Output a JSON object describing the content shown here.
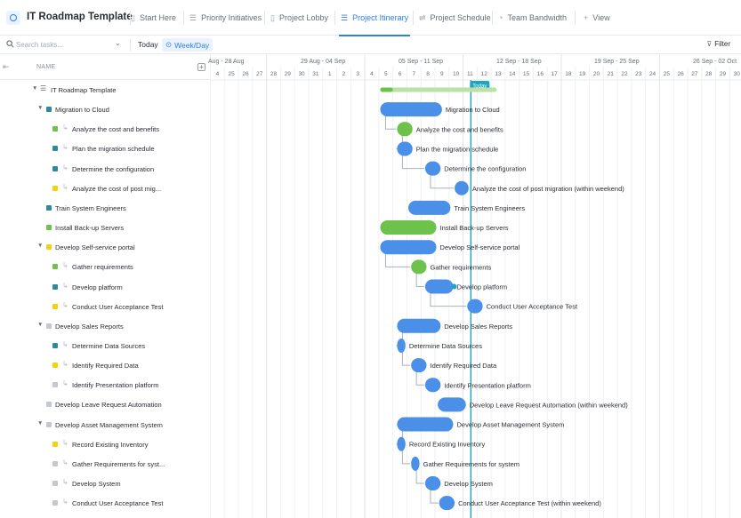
{
  "app": {
    "title": "IT Roadmap Template",
    "tabs": [
      {
        "label": "Start Here",
        "icon": "doc-icon",
        "glyph": "▯"
      },
      {
        "label": "Priority Initiatives",
        "icon": "list-icon",
        "glyph": "☰"
      },
      {
        "label": "Project Lobby",
        "icon": "board-icon",
        "glyph": "▯"
      },
      {
        "label": "Project Itinerary",
        "icon": "gantt-icon",
        "glyph": "☰",
        "active": true
      },
      {
        "label": "Project Schedule",
        "icon": "timeline-icon",
        "glyph": "⇌"
      },
      {
        "label": "Team Bandwidth",
        "icon": "workload-icon",
        "glyph": "◔"
      },
      {
        "label": "View",
        "icon": "plus-icon",
        "glyph": "+"
      }
    ]
  },
  "toolbar": {
    "search_placeholder": "Search tasks...",
    "today_label": "Today",
    "weekday_label": "Week/Day",
    "filter_label": "Filter"
  },
  "list": {
    "name_header": "NAME"
  },
  "colors": {
    "accent": "#2f7fe0",
    "bar_blue": "#4a8fe8",
    "bar_green": "#6cc24a",
    "progress_light": "#b9e2a3",
    "today_line": "#1fa3c0",
    "status_green": "#6cc24a",
    "status_teal": "#2e8b9a",
    "status_yellow": "#f5d20f",
    "status_grey": "#c4c9d1"
  },
  "timeline": {
    "weeks": [
      "Aug - 28 Aug",
      "29 Aug - 04 Sep",
      "05 Sep - 11 Sep",
      "12 Sep - 18 Sep",
      "19 Sep - 25 Sep",
      "26 Sep - 02 Oct"
    ],
    "days": [
      "4",
      "25",
      "26",
      "27",
      "28",
      "29",
      "30",
      "31",
      "1",
      "2",
      "3",
      "4",
      "5",
      "6",
      "7",
      "8",
      "9",
      "10",
      "11",
      "12",
      "13",
      "14",
      "15",
      "16",
      "17",
      "18",
      "19",
      "20",
      "21",
      "22",
      "23",
      "24",
      "25",
      "26",
      "27",
      "28",
      "29",
      "30"
    ],
    "today_label": "Today"
  },
  "tasks": [
    {
      "name": "IT Roadmap Template",
      "level": 0,
      "kind": "list",
      "expanded": true,
      "bar_label": ""
    },
    {
      "name": "Migration to Cloud",
      "level": 1,
      "status": "teal",
      "expanded": true,
      "bar_label": "Migration to Cloud",
      "color": "blue"
    },
    {
      "name": "Analyze the cost and benefits",
      "level": 2,
      "status": "green",
      "bar_label": "Analyze the cost and benefits",
      "color": "green"
    },
    {
      "name": "Plan the migration schedule",
      "level": 2,
      "status": "teal",
      "bar_label": "Plan the migration schedule",
      "color": "blue"
    },
    {
      "name": "Determine the configuration",
      "level": 2,
      "status": "teal",
      "bar_label": "Determine the configuration",
      "color": "blue"
    },
    {
      "name": "Analyze the cost of post mig...",
      "level": 2,
      "status": "yellow",
      "bar_label": "Analyze the cost of post migration (within weekend)",
      "color": "blue"
    },
    {
      "name": "Train System Engineers",
      "level": 1,
      "status": "teal",
      "bar_label": "Train System Engineers",
      "color": "blue"
    },
    {
      "name": "Install Back-up Servers",
      "level": 1,
      "status": "green",
      "bar_label": "Install Back-up Servers",
      "color": "green"
    },
    {
      "name": "Develop Self-service portal",
      "level": 1,
      "status": "yellow",
      "expanded": true,
      "bar_label": "Develop Self-service portal",
      "color": "blue"
    },
    {
      "name": "Gather requirements",
      "level": 2,
      "status": "green",
      "bar_label": "Gather requirements",
      "color": "green"
    },
    {
      "name": "Develop platform",
      "level": 2,
      "status": "teal",
      "bar_label": "Develop platform",
      "color": "blue"
    },
    {
      "name": "Conduct User Acceptance Test",
      "level": 2,
      "status": "yellow",
      "bar_label": "Conduct User Acceptance Test",
      "color": "blue"
    },
    {
      "name": "Develop Sales Reports",
      "level": 1,
      "status": "grey",
      "expanded": true,
      "bar_label": "Develop Sales Reports",
      "color": "blue"
    },
    {
      "name": "Determine Data Sources",
      "level": 2,
      "status": "teal",
      "bar_label": "Determine Data Sources",
      "color": "blue"
    },
    {
      "name": "Identify Required Data",
      "level": 2,
      "status": "yellow",
      "bar_label": "Identify Required Data",
      "color": "blue"
    },
    {
      "name": "Identify Presentation platform",
      "level": 2,
      "status": "grey",
      "bar_label": "Identify Presentation platform",
      "color": "blue"
    },
    {
      "name": "Develop Leave Request Automation",
      "level": 1,
      "status": "grey",
      "bar_label": "Develop Leave Request Automation (within weekend)",
      "color": "blue"
    },
    {
      "name": "Develop Asset Management System",
      "level": 1,
      "status": "grey",
      "expanded": true,
      "bar_label": "Develop Asset Management System",
      "color": "blue"
    },
    {
      "name": "Record Existing Inventory",
      "level": 2,
      "status": "yellow",
      "bar_label": "Record Existing Inventory",
      "color": "blue"
    },
    {
      "name": "Gather Requirements for syst...",
      "level": 2,
      "status": "grey",
      "bar_label": "Gather Requirements for system",
      "color": "blue"
    },
    {
      "name": "Develop System",
      "level": 2,
      "status": "grey",
      "bar_label": "Develop System",
      "color": "blue"
    },
    {
      "name": "Conduct User Acceptance Test",
      "level": 2,
      "status": "grey",
      "bar_label": "Conduct User Acceptance Test (within weekend)",
      "color": "blue"
    }
  ]
}
